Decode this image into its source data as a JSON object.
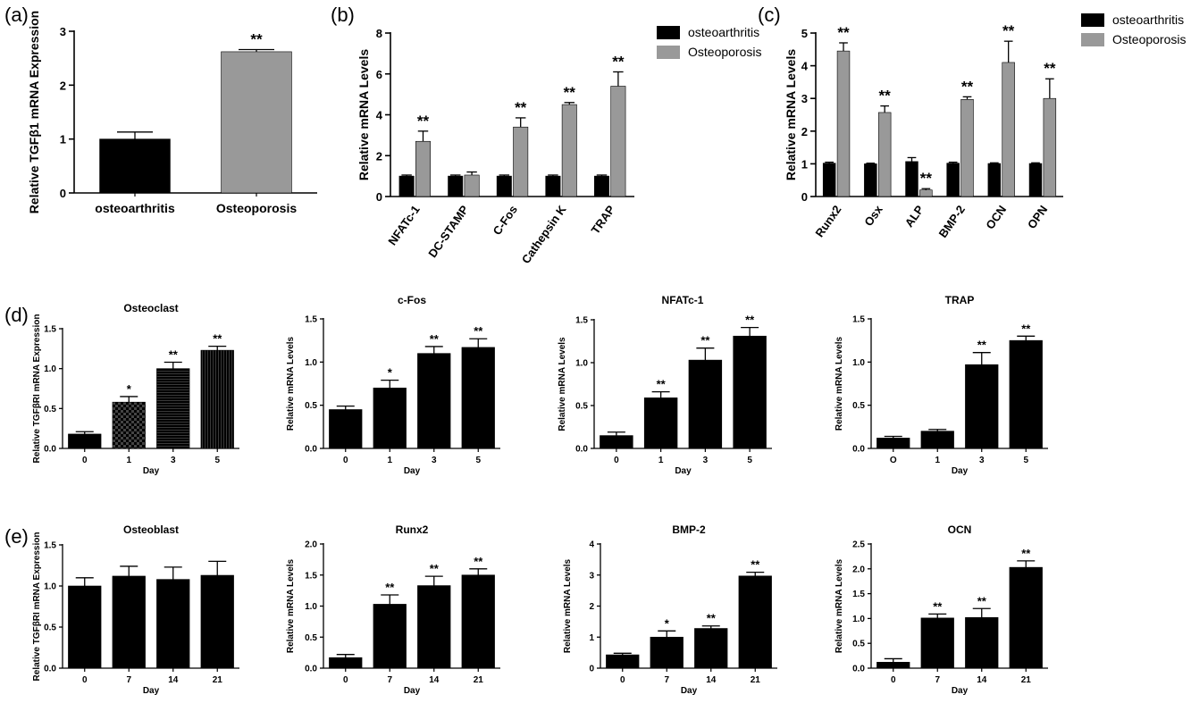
{
  "colors": {
    "osteoarthritis": "#000000",
    "osteoporosis": "#999999",
    "bar_d": "#000000"
  },
  "chart_data": [
    {
      "id": "a",
      "panel_label": "(a)",
      "type": "bar",
      "title": "",
      "xlabel": "",
      "ylabel": "Relative TGFβ1 mRNA Expression",
      "ylim": [
        0,
        3
      ],
      "yticks": [
        0,
        1,
        2,
        3
      ],
      "categories": [
        "osteoarthritis",
        "Osteoporosis"
      ],
      "values": [
        1.0,
        2.62
      ],
      "errors": [
        0.13,
        0.04
      ],
      "sig": [
        "",
        "**"
      ],
      "colors": [
        "#000000",
        "#999999"
      ]
    },
    {
      "id": "b",
      "panel_label": "(b)",
      "type": "bar",
      "title": "",
      "xlabel": "",
      "ylabel": "Relative mRNA Levels",
      "ylim": [
        0,
        8
      ],
      "yticks": [
        0,
        2,
        4,
        6,
        8
      ],
      "categories": [
        "NFATc-1",
        "DC-STAMP",
        "C-Fos",
        "Cathepsin K",
        "TRAP"
      ],
      "legend": [
        "osteoarthritis",
        "Osteoporosis"
      ],
      "series": [
        {
          "name": "osteoarthritis",
          "values": [
            1.0,
            1.0,
            1.0,
            1.0,
            1.0
          ],
          "errors": [
            0.05,
            0.05,
            0.05,
            0.05,
            0.05
          ],
          "sig": [
            "",
            "",
            "",
            "",
            ""
          ]
        },
        {
          "name": "Osteoporosis",
          "values": [
            2.7,
            1.05,
            3.4,
            4.5,
            5.4
          ],
          "errors": [
            0.5,
            0.15,
            0.45,
            0.1,
            0.7
          ],
          "sig": [
            "**",
            "",
            "**",
            "**",
            "**"
          ]
        }
      ]
    },
    {
      "id": "c",
      "panel_label": "(c)",
      "type": "bar",
      "title": "",
      "xlabel": "",
      "ylabel": "Relative mRNA Levels",
      "ylim": [
        0,
        5
      ],
      "yticks": [
        0,
        1,
        2,
        3,
        4,
        5
      ],
      "categories": [
        "Runx2",
        "Osx",
        "ALP",
        "BMP-2",
        "OCN",
        "OPN"
      ],
      "legend": [
        "osteoarthritis",
        "Osteoporosis"
      ],
      "series": [
        {
          "name": "osteoarthritis",
          "values": [
            1.02,
            1.0,
            1.07,
            1.02,
            1.01,
            1.01
          ],
          "errors": [
            0.03,
            0.02,
            0.12,
            0.03,
            0.02,
            0.02
          ],
          "sig": [
            "",
            "",
            "",
            "",
            "",
            ""
          ]
        },
        {
          "name": "Osteoporosis",
          "values": [
            4.45,
            2.57,
            0.2,
            2.97,
            4.1,
            3.0
          ],
          "errors": [
            0.25,
            0.2,
            0.04,
            0.08,
            0.65,
            0.6
          ],
          "sig": [
            "**",
            "**",
            "**",
            "**",
            "**",
            "**"
          ]
        }
      ]
    },
    {
      "id": "d1",
      "panel_label": "(d)",
      "type": "bar",
      "title": "Osteoclast",
      "xlabel": "Day",
      "ylabel": "Relative TGFβRI mRNA Expression",
      "ylim": [
        0,
        1.5
      ],
      "yticks": [
        "0.0",
        "0.5",
        "1.0",
        "1.5"
      ],
      "categories": [
        "0",
        "1",
        "3",
        "5"
      ],
      "values": [
        0.18,
        0.58,
        1.0,
        1.23
      ],
      "errors": [
        0.03,
        0.07,
        0.08,
        0.05
      ],
      "sig": [
        "",
        "*",
        "**",
        "**"
      ]
    },
    {
      "id": "d2",
      "panel_label": "",
      "type": "bar",
      "title": "c-Fos",
      "xlabel": "Day",
      "ylabel": "Relative mRNA Levels",
      "ylim": [
        0,
        1.5
      ],
      "yticks": [
        "0.0",
        "0.5",
        "1.0",
        "1.5"
      ],
      "categories": [
        "0",
        "1",
        "3",
        "5"
      ],
      "values": [
        0.45,
        0.7,
        1.1,
        1.17
      ],
      "errors": [
        0.04,
        0.09,
        0.08,
        0.1
      ],
      "sig": [
        "",
        "*",
        "**",
        "**"
      ]
    },
    {
      "id": "d3",
      "panel_label": "",
      "type": "bar",
      "title": "NFATc-1",
      "xlabel": "Day",
      "ylabel": "Relative mRNA Levels",
      "ylim": [
        0,
        1.5
      ],
      "yticks": [
        "0.0",
        "0.5",
        "1.0",
        "1.5"
      ],
      "categories": [
        "0",
        "1",
        "3",
        "5"
      ],
      "values": [
        0.15,
        0.59,
        1.03,
        1.31
      ],
      "errors": [
        0.04,
        0.07,
        0.14,
        0.1
      ],
      "sig": [
        "",
        "**",
        "**",
        "**"
      ]
    },
    {
      "id": "d4",
      "panel_label": "",
      "type": "bar",
      "title": "TRAP",
      "xlabel": "Day",
      "ylabel": "Relative mRNA Levels",
      "ylim": [
        0,
        1.5
      ],
      "yticks": [
        "0.0",
        "0.5",
        "1.0",
        "1.5"
      ],
      "categories": [
        "O",
        "1",
        "3",
        "5"
      ],
      "values": [
        0.12,
        0.2,
        0.97,
        1.25
      ],
      "errors": [
        0.02,
        0.02,
        0.14,
        0.05
      ],
      "sig": [
        "",
        "",
        "**",
        "**"
      ]
    },
    {
      "id": "e1",
      "panel_label": "(e)",
      "type": "bar",
      "title": "Osteoblast",
      "xlabel": "Day",
      "ylabel": "Relative TGFβRI mRNA Expression",
      "ylim": [
        0,
        1.5
      ],
      "yticks": [
        "0.0",
        "0.5",
        "1.0",
        "1.5"
      ],
      "categories": [
        "0",
        "7",
        "14",
        "21"
      ],
      "values": [
        1.0,
        1.12,
        1.08,
        1.13
      ],
      "errors": [
        0.1,
        0.12,
        0.15,
        0.17
      ],
      "sig": [
        "",
        "",
        "",
        ""
      ]
    },
    {
      "id": "e2",
      "panel_label": "",
      "type": "bar",
      "title": "Runx2",
      "xlabel": "Day",
      "ylabel": "Relative mRNA Levels",
      "ylim": [
        0,
        2.0
      ],
      "yticks": [
        "0.0",
        "0.5",
        "1.0",
        "1.5",
        "2.0"
      ],
      "categories": [
        "0",
        "7",
        "14",
        "21"
      ],
      "values": [
        0.17,
        1.03,
        1.33,
        1.5
      ],
      "errors": [
        0.05,
        0.15,
        0.15,
        0.1
      ],
      "sig": [
        "",
        "**",
        "**",
        "**"
      ]
    },
    {
      "id": "e3",
      "panel_label": "",
      "type": "bar",
      "title": "BMP-2",
      "xlabel": "Day",
      "ylabel": "Relative mRNA Levels",
      "ylim": [
        0,
        4
      ],
      "yticks": [
        "0",
        "1",
        "2",
        "3",
        "4"
      ],
      "categories": [
        "0",
        "7",
        "14",
        "21"
      ],
      "values": [
        0.43,
        1.0,
        1.28,
        2.97
      ],
      "errors": [
        0.05,
        0.2,
        0.08,
        0.12
      ],
      "sig": [
        "",
        "*",
        "**",
        "**"
      ]
    },
    {
      "id": "e4",
      "panel_label": "",
      "type": "bar",
      "title": "OCN",
      "xlabel": "Day",
      "ylabel": "Relative mRNA Levels",
      "ylim": [
        0,
        2.5
      ],
      "yticks": [
        "0.0",
        "0.5",
        "1.0",
        "1.5",
        "2.0",
        "2.5"
      ],
      "categories": [
        "0",
        "7",
        "14",
        "21"
      ],
      "values": [
        0.12,
        1.01,
        1.02,
        2.03
      ],
      "errors": [
        0.07,
        0.08,
        0.18,
        0.13
      ],
      "sig": [
        "",
        "**",
        "**",
        "**"
      ]
    }
  ]
}
